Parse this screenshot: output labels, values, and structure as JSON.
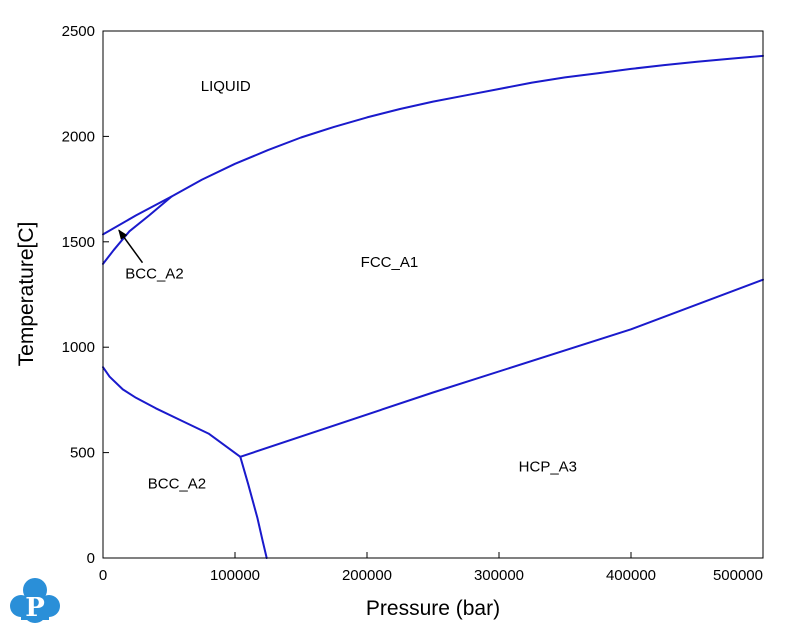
{
  "chart_data": {
    "type": "line",
    "xlabel": "Pressure (bar)",
    "ylabel": "Temperature[C]",
    "xlim": [
      0,
      500000
    ],
    "ylim": [
      0,
      2500
    ],
    "xticks": [
      0,
      100000,
      200000,
      300000,
      400000,
      500000
    ],
    "xtick_labels": [
      "0",
      "100000",
      "200000",
      "300000",
      "400000",
      "500000"
    ],
    "yticks": [
      0,
      500,
      1000,
      1500,
      2000,
      2500
    ],
    "ytick_labels": [
      "0",
      "500",
      "1000",
      "1500",
      "2000",
      "2500"
    ],
    "grid": false,
    "line_color": "#1a1acc",
    "series": [
      {
        "points": [
          [
            0,
            1535
          ],
          [
            25000,
            1625
          ],
          [
            52000,
            1715
          ],
          [
            75000,
            1795
          ],
          [
            100000,
            1870
          ],
          [
            125000,
            1935
          ],
          [
            150000,
            1995
          ],
          [
            175000,
            2045
          ],
          [
            200000,
            2090
          ],
          [
            225000,
            2130
          ],
          [
            250000,
            2165
          ],
          [
            275000,
            2195
          ],
          [
            300000,
            2225
          ],
          [
            325000,
            2255
          ],
          [
            350000,
            2280
          ],
          [
            375000,
            2300
          ],
          [
            400000,
            2320
          ],
          [
            425000,
            2338
          ],
          [
            450000,
            2354
          ],
          [
            475000,
            2368
          ],
          [
            500000,
            2382
          ]
        ]
      },
      {
        "points": [
          [
            0,
            1395
          ],
          [
            8000,
            1460
          ],
          [
            20000,
            1550
          ],
          [
            35000,
            1625
          ],
          [
            52000,
            1715
          ]
        ]
      },
      {
        "points": [
          [
            0,
            905
          ],
          [
            5000,
            860
          ],
          [
            15000,
            800
          ],
          [
            25000,
            760
          ],
          [
            40000,
            710
          ],
          [
            60000,
            650
          ],
          [
            80000,
            590
          ],
          [
            104000,
            480
          ]
        ]
      },
      {
        "points": [
          [
            104000,
            480
          ],
          [
            250000,
            785
          ],
          [
            400000,
            1085
          ],
          [
            500000,
            1320
          ]
        ]
      },
      {
        "points": [
          [
            104000,
            480
          ],
          [
            110000,
            350
          ],
          [
            117000,
            190
          ],
          [
            121000,
            80
          ],
          [
            124000,
            0
          ]
        ]
      }
    ],
    "annotations": [
      {
        "text": "LIQUID",
        "x": 93000,
        "y": 2215
      },
      {
        "text": "FCC_A1",
        "x": 217000,
        "y": 1380
      },
      {
        "text": "BCC_A2",
        "x": 39000,
        "y": 1325,
        "arrow_to": [
          12000,
          1555
        ]
      },
      {
        "text": "BCC_A2",
        "x": 56000,
        "y": 330
      },
      {
        "text": "HCP_A3",
        "x": 337000,
        "y": 410
      }
    ]
  },
  "logo": {
    "letter": "P",
    "color": "#2a8fd8"
  }
}
